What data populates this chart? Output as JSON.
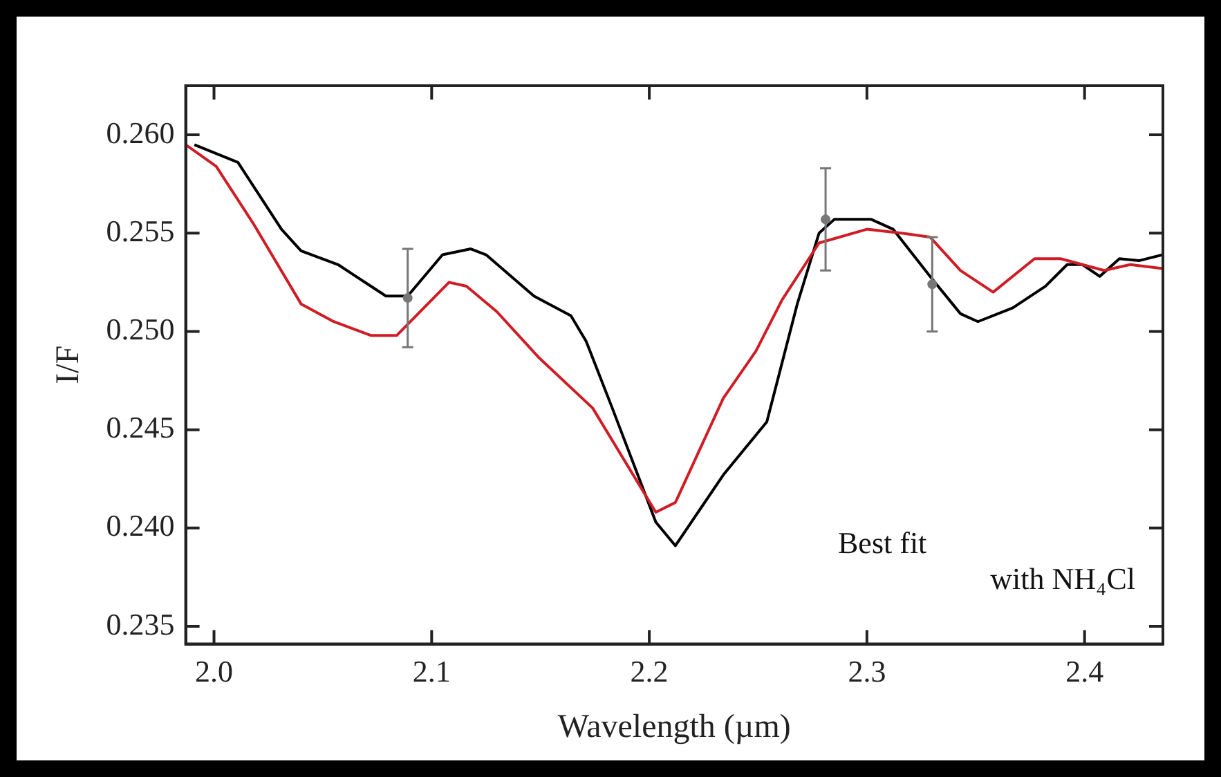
{
  "chart_data": {
    "type": "line",
    "xlabel": "Wavelength (µm)",
    "ylabel": "I/F",
    "xlim": [
      1.987,
      2.436
    ],
    "ylim": [
      0.2341,
      0.2625
    ],
    "xticks": [
      {
        "value": 2,
        "label": "2.0"
      },
      2.1,
      2.2,
      2.3,
      2.4
    ],
    "yticks": [
      {
        "value": 0.235,
        "label": "0.235"
      },
      {
        "value": 0.24,
        "label": "0.240"
      },
      {
        "value": 0.245,
        "label": "0.245"
      },
      {
        "value": 0.25,
        "label": "0.250"
      },
      {
        "value": 0.255,
        "label": "0.255"
      },
      {
        "value": 0.26,
        "label": "0.260"
      }
    ],
    "grid": false,
    "legend": false,
    "marker": "none",
    "line_style": "solid",
    "annotations": [
      "Best fit\nwith NH₄Cl"
    ],
    "series": [
      {
        "color": "#000000",
        "x": [
          1.991,
          2.011,
          2.031,
          2.04,
          2.057,
          2.079,
          2.089,
          2.105,
          2.118,
          2.125,
          2.147,
          2.164,
          2.171,
          2.183,
          2.203,
          2.212,
          2.234,
          2.254,
          2.268,
          2.278,
          2.285,
          2.302,
          2.312,
          2.329,
          2.343,
          2.351,
          2.367,
          2.382,
          2.392,
          2.399,
          2.407,
          2.416,
          2.425,
          2.436
        ],
        "values": [
          0.2595,
          0.2586,
          0.2552,
          0.2541,
          0.2534,
          0.2518,
          0.2518,
          0.2539,
          0.2542,
          0.2539,
          0.2518,
          0.2508,
          0.2495,
          0.2461,
          0.2403,
          0.2391,
          0.2427,
          0.2454,
          0.2514,
          0.255,
          0.2557,
          0.2557,
          0.2552,
          0.2528,
          0.2509,
          0.2505,
          0.2512,
          0.2523,
          0.2534,
          0.2534,
          0.2528,
          0.2537,
          0.2536,
          0.2539
        ]
      },
      {
        "color": "#d01c24",
        "x": [
          1.987,
          2.001,
          2.018,
          2.04,
          2.055,
          2.072,
          2.084,
          2.108,
          2.116,
          2.13,
          2.149,
          2.174,
          2.203,
          2.212,
          2.234,
          2.249,
          2.261,
          2.278,
          2.3,
          2.316,
          2.329,
          2.343,
          2.358,
          2.377,
          2.389,
          2.399,
          2.409,
          2.421,
          2.436
        ],
        "values": [
          0.2595,
          0.2584,
          0.2555,
          0.2514,
          0.2505,
          0.2498,
          0.2498,
          0.2525,
          0.2523,
          0.251,
          0.2487,
          0.2461,
          0.2408,
          0.2413,
          0.2466,
          0.249,
          0.2516,
          0.2545,
          0.2552,
          0.255,
          0.2548,
          0.2531,
          0.252,
          0.2537,
          0.2537,
          0.2534,
          0.2531,
          0.2534,
          0.2532
        ]
      },
      {
        "type": "scatter",
        "marker": "circle",
        "color": "#777777",
        "x": [
          2.089,
          2.281,
          2.33
        ],
        "values": [
          0.2517,
          0.2557,
          0.2524
        ],
        "errors": [
          0.0025,
          0.0026,
          0.0024
        ]
      }
    ]
  }
}
